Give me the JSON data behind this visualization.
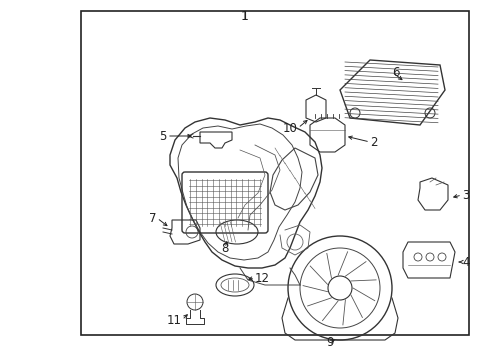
{
  "bg_color": "#ffffff",
  "line_color": "#222222",
  "fig_width": 4.89,
  "fig_height": 3.6,
  "dpi": 100,
  "border": [
    0.165,
    0.03,
    0.96,
    0.93
  ]
}
